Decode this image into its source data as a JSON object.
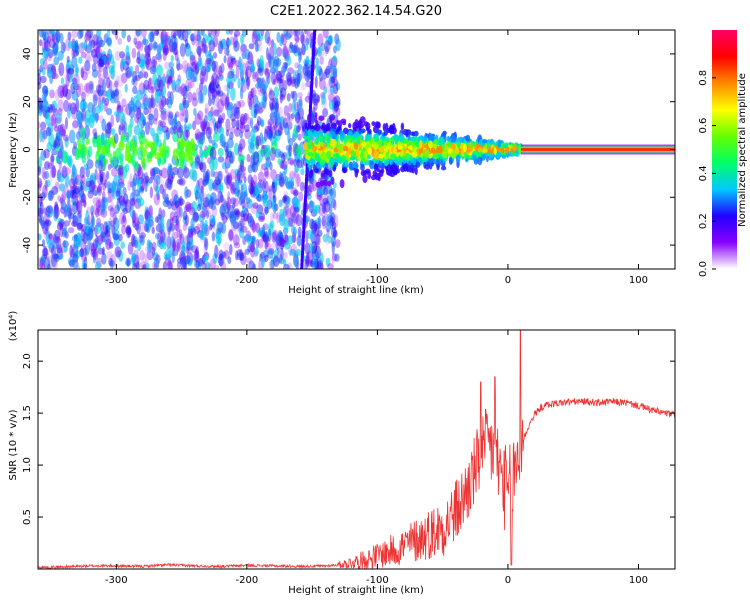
{
  "figure": {
    "title": "C2E1.2022.362.14.54.G20",
    "colors": {
      "snr_line": "#ee3333",
      "frame": "#000000",
      "background": "#ffffff"
    }
  },
  "chart_data": [
    {
      "type": "heatmap",
      "title": "",
      "xlabel": "Height of straight line (km)",
      "ylabel": "Frequency (Hz)",
      "xlim": [
        -360,
        128
      ],
      "ylim": [
        -50,
        50
      ],
      "xticks": [
        -300,
        -200,
        -100,
        0,
        100
      ],
      "yticks": [
        -40,
        -20,
        0,
        20,
        40
      ],
      "colorbar": {
        "label": "Normalized spectral amplitude",
        "range": [
          0.0,
          1.0
        ],
        "ticks": [
          "0.0",
          "0.2",
          "0.4",
          "0.6",
          "0.8"
        ],
        "tick_values": [
          0.0,
          0.2,
          0.4,
          0.6,
          0.8
        ],
        "colormap": [
          "#ffffff",
          "#8800ff",
          "#2200ff",
          "#00c8ff",
          "#00ff66",
          "#66ff00",
          "#ffff00",
          "#ff8800",
          "#ff0000",
          "#ff0066"
        ]
      },
      "features": {
        "scattered_noise_x_range": [
          -360,
          -130
        ],
        "decreasing_spread_x_range": [
          -155,
          10
        ],
        "steady_tone_x_range": [
          10,
          128
        ],
        "steady_tone_frequency": 0,
        "steady_tone_amplitude": 0.85
      }
    },
    {
      "type": "line",
      "title": "",
      "xlabel": "Height of straight line (km)",
      "ylabel": "SNR (10 * v/v)",
      "y_multiplier": "(x10⁴)",
      "xlim": [
        -360,
        128
      ],
      "ylim": [
        0,
        23000
      ],
      "xticks": [
        -300,
        -200,
        -100,
        0,
        100
      ],
      "yticks": [
        5000,
        10000,
        15000,
        20000
      ],
      "ytick_labels": [
        "0.5",
        "1.0",
        "1.5",
        "2.0"
      ],
      "series": [
        {
          "x": [
            -360,
            -340,
            -320,
            -300,
            -280,
            -260,
            -240,
            -220,
            -200,
            -180,
            -160,
            -140,
            -130,
            -120,
            -110,
            -100,
            -90,
            -80,
            -70,
            -60,
            -50,
            -40,
            -35,
            -30,
            -25,
            -20,
            -15,
            -10,
            -5,
            0,
            5,
            8,
            10,
            12,
            15,
            20,
            25,
            30,
            40,
            50,
            60,
            70,
            80,
            90,
            100,
            110,
            120,
            128
          ],
          "y": [
            150,
            200,
            300,
            300,
            250,
            400,
            300,
            250,
            350,
            300,
            250,
            300,
            400,
            600,
            900,
            1300,
            1700,
            2200,
            2800,
            3400,
            4000,
            5500,
            6500,
            8000,
            9500,
            11000,
            12000,
            11000,
            9000,
            7000,
            9000,
            11000,
            12000,
            12500,
            13500,
            14800,
            15500,
            15800,
            16000,
            16100,
            16100,
            16000,
            16100,
            16000,
            15700,
            15300,
            15000,
            14800
          ]
        }
      ]
    }
  ]
}
